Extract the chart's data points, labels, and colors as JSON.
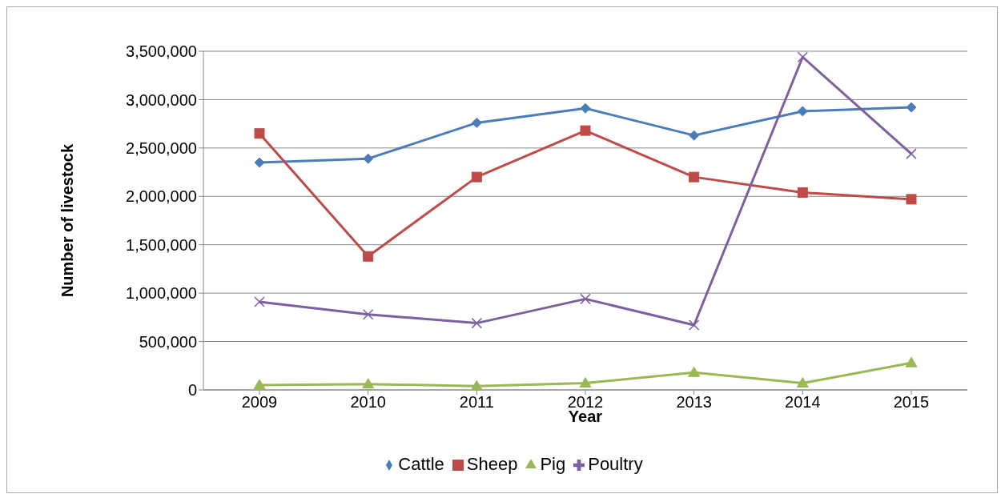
{
  "chart_data": {
    "type": "line",
    "xlabel": "Year",
    "ylabel": "Number of livestock",
    "categories": [
      "2009",
      "2010",
      "2011",
      "2012",
      "2013",
      "2014",
      "2015"
    ],
    "series": [
      {
        "name": "Cattle",
        "color": "#4a7ebb",
        "marker": "diamond",
        "values": [
          2350000,
          2390000,
          2760000,
          2910000,
          2630000,
          2880000,
          2920000
        ]
      },
      {
        "name": "Sheep",
        "color": "#be4b48",
        "marker": "square",
        "values": [
          2650000,
          1380000,
          2200000,
          2680000,
          2200000,
          2040000,
          1970000
        ]
      },
      {
        "name": "Pig",
        "color": "#98b954",
        "marker": "triangle",
        "values": [
          50000,
          60000,
          40000,
          70000,
          180000,
          70000,
          280000
        ]
      },
      {
        "name": "Poultry",
        "color": "#7d60a0",
        "marker": "cross",
        "values": [
          910000,
          780000,
          690000,
          940000,
          670000,
          3440000,
          2440000
        ]
      }
    ],
    "ylim": [
      0,
      3500000
    ],
    "yticks": [
      0,
      {
        "value": 500000,
        "label": "500,000"
      },
      {
        "value": 1000000,
        "label": "1,000,000"
      },
      {
        "value": 1500000,
        "label": "1,500,000"
      },
      {
        "value": 2000000,
        "label": "2,000,000"
      },
      {
        "value": 2500000,
        "label": "2,500,000"
      },
      {
        "value": 3000000,
        "label": "3,000,000"
      },
      {
        "value": 3500000,
        "label": "3,500,000"
      }
    ],
    "grid": "y",
    "legend": "bottom"
  }
}
